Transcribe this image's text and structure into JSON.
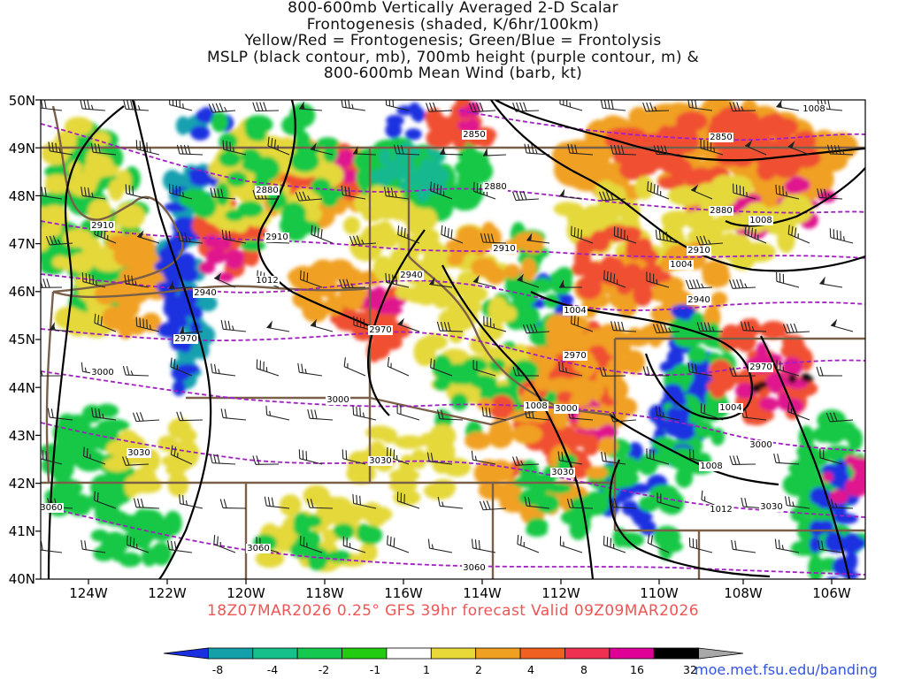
{
  "title_lines": [
    "800-600mb Vertically Averaged 2-D Scalar",
    "Frontogenesis (shaded, K/6hr/100km)",
    "Yellow/Red = Frontogenesis;  Green/Blue = Frontolysis",
    "MSLP (black contour, mb), 700mb height (purple contour, m) &",
    "800-600mb Mean Wind (barb, kt)"
  ],
  "footer": "18Z07MAR2026 0.25° GFS 39hr forecast Valid 09Z09MAR2026",
  "credit": "moe.met.fsu.edu/banding",
  "map": {
    "lat_labels": [
      "50N",
      "49N",
      "48N",
      "47N",
      "46N",
      "45N",
      "44N",
      "43N",
      "42N",
      "41N",
      "40N"
    ],
    "lon_labels": [
      "124W",
      "122W",
      "120W",
      "118W",
      "116W",
      "114W",
      "112W",
      "110W",
      "108W",
      "106W"
    ],
    "colors": {
      "mslp": "#000000",
      "height": "#a020c0",
      "border": "#7a6048",
      "barb": "#222222"
    },
    "height_contour_labels": [
      "2850",
      "2850",
      "2880",
      "2880",
      "2880",
      "2910",
      "2910",
      "2910",
      "2910",
      "2940",
      "2940",
      "2940",
      "2970",
      "2970",
      "2970",
      "2970",
      "3000",
      "3000",
      "3000",
      "3000",
      "3030",
      "3030",
      "3030",
      "3030",
      "3060",
      "3060",
      "3060"
    ],
    "mslp_contour_labels": [
      "1008",
      "1008",
      "1012",
      "1004",
      "1004",
      "1004",
      "1008",
      "1008",
      "1012"
    ]
  },
  "colorbar": {
    "labels": [
      "-8",
      "-4",
      "-2",
      "-1",
      "1",
      "2",
      "4",
      "8",
      "16",
      "32"
    ],
    "colors": [
      "#1a2fe0",
      "#13a0a8",
      "#16c08a",
      "#14c850",
      "#22cc10",
      "#ffffff",
      "#e8d838",
      "#f0a020",
      "#f06020",
      "#f03050",
      "#e00098",
      "#000000",
      "#a8a8a8"
    ]
  }
}
